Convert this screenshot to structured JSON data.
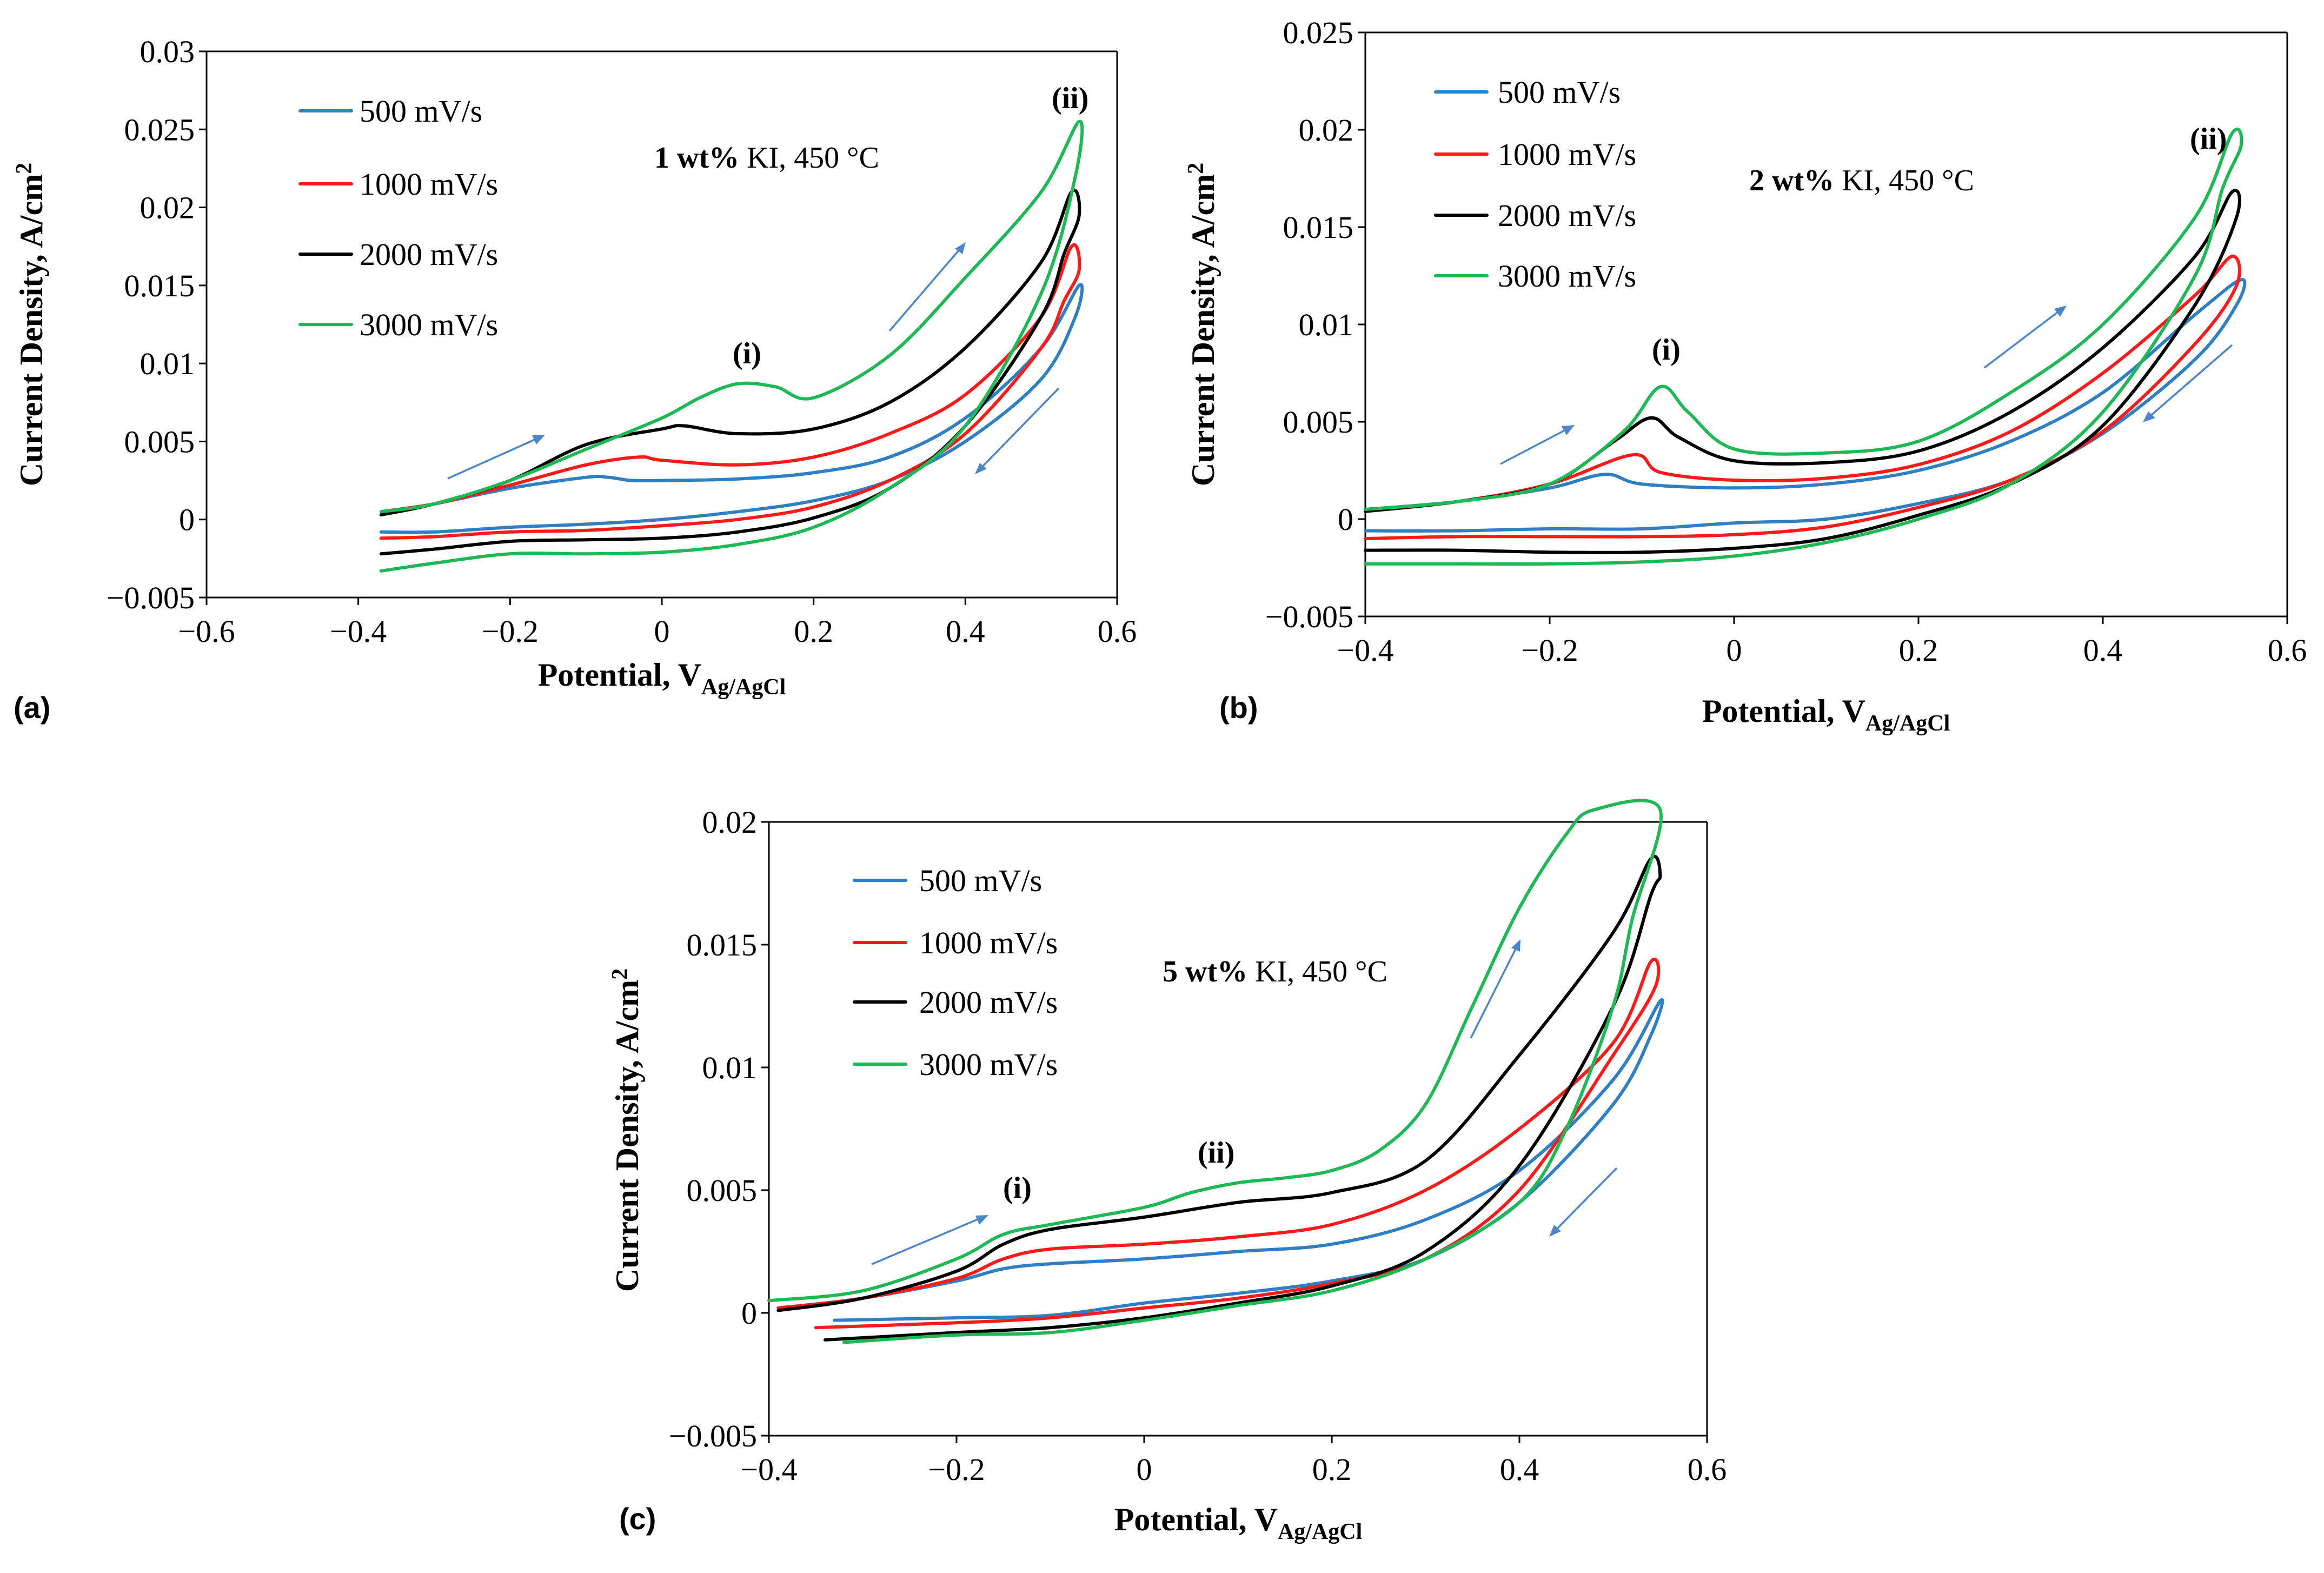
{
  "colors": {
    "s500": "#2f7fc4",
    "s1000": "#ff1a1a",
    "s2000": "#000000",
    "s3000": "#1db954",
    "arrow": "#4a86c8"
  },
  "chart_data": [
    {
      "id": "a",
      "type": "line",
      "panel_label": "(a)",
      "title_bold": "1 wt%",
      "title_rest": " KI, 450 °C",
      "xlabel_main": "Potential, V",
      "xlabel_sub": "Ag/AgCl",
      "ylabel": "Current Density, A/cm",
      "ylabel_sup": "2",
      "xlim": [
        -0.6,
        0.6
      ],
      "ylim": [
        -0.005,
        0.03
      ],
      "xticks": [
        -0.6,
        -0.4,
        -0.2,
        0,
        0.2,
        0.4,
        0.6
      ],
      "xtick_labels": [
        "−0.6",
        "−0.4",
        "−0.2",
        "0",
        "0.2",
        "0.4",
        "0.6"
      ],
      "yticks": [
        -0.005,
        0,
        0.005,
        0.01,
        0.015,
        0.02,
        0.025,
        0.03
      ],
      "ytick_labels": [
        "−0.005",
        "0",
        "0.005",
        "0.01",
        "0.015",
        "0.02",
        "0.025",
        "0.03"
      ],
      "annotations": [
        "(i)",
        "(ii)"
      ],
      "series": [
        {
          "name": "500 mV/s",
          "color_key": "s500",
          "x": [
            -0.37,
            -0.3,
            -0.2,
            -0.1,
            -0.07,
            -0.04,
            0,
            0.1,
            0.2,
            0.3,
            0.4,
            0.5,
            0.55,
            0.545,
            0.5,
            0.4,
            0.3,
            0.2,
            0.1,
            0,
            -0.1,
            -0.2,
            -0.3,
            -0.37
          ],
          "y": [
            0.0005,
            0.001,
            0.002,
            0.0027,
            0.0027,
            0.0025,
            0.0025,
            0.0026,
            0.003,
            0.004,
            0.0065,
            0.011,
            0.015,
            0.013,
            0.009,
            0.005,
            0.0025,
            0.0012,
            0.0005,
            0,
            -0.0003,
            -0.0005,
            -0.0008,
            -0.0008
          ]
        },
        {
          "name": "1000 mV/s",
          "color_key": "s1000",
          "x": [
            -0.37,
            -0.3,
            -0.2,
            -0.1,
            -0.03,
            0,
            0.1,
            0.2,
            0.3,
            0.4,
            0.5,
            0.54,
            0.55,
            0.53,
            0.5,
            0.4,
            0.3,
            0.2,
            0.1,
            0,
            -0.1,
            -0.2,
            -0.3,
            -0.37
          ],
          "y": [
            0.0005,
            0.001,
            0.0022,
            0.0035,
            0.004,
            0.0038,
            0.0035,
            0.004,
            0.0055,
            0.008,
            0.013,
            0.0175,
            0.016,
            0.014,
            0.011,
            0.0055,
            0.0025,
            0.0008,
            0,
            -0.0004,
            -0.0007,
            -0.0008,
            -0.0011,
            -0.0012
          ]
        },
        {
          "name": "2000 mV/s",
          "color_key": "s2000",
          "x": [
            -0.37,
            -0.3,
            -0.2,
            -0.1,
            0,
            0.03,
            0.1,
            0.2,
            0.3,
            0.4,
            0.5,
            0.54,
            0.55,
            0.53,
            0.5,
            0.4,
            0.3,
            0.2,
            0.1,
            0,
            -0.1,
            -0.2,
            -0.3,
            -0.37
          ],
          "y": [
            0.0003,
            0.001,
            0.0025,
            0.0048,
            0.0058,
            0.006,
            0.0055,
            0.0058,
            0.0075,
            0.011,
            0.0165,
            0.021,
            0.0195,
            0.017,
            0.013,
            0.006,
            0.002,
            0.0001,
            -0.0008,
            -0.0012,
            -0.0013,
            -0.0014,
            -0.0019,
            -0.0022
          ]
        },
        {
          "name": "3000 mV/s",
          "color_key": "s3000",
          "x": [
            -0.37,
            -0.3,
            -0.2,
            -0.1,
            0,
            0.05,
            0.1,
            0.15,
            0.2,
            0.3,
            0.4,
            0.5,
            0.55,
            0.545,
            0.5,
            0.4,
            0.3,
            0.2,
            0.1,
            0,
            -0.1,
            -0.2,
            -0.3,
            -0.37
          ],
          "y": [
            0.0005,
            0.001,
            0.0025,
            0.0045,
            0.0065,
            0.0078,
            0.0087,
            0.0085,
            0.0078,
            0.0105,
            0.0155,
            0.021,
            0.0255,
            0.022,
            0.0145,
            0.006,
            0.002,
            -0.0005,
            -0.0016,
            -0.0021,
            -0.0022,
            -0.0022,
            -0.0028,
            -0.0033
          ]
        }
      ]
    },
    {
      "id": "b",
      "type": "line",
      "panel_label": "(b)",
      "title_bold": "2 wt%",
      "title_rest": " KI, 450 °C",
      "xlabel_main": "Potential, V",
      "xlabel_sub": "Ag/AgCl",
      "ylabel": "Current Density, A/cm",
      "ylabel_sup": "2",
      "xlim": [
        -0.4,
        0.6
      ],
      "ylim": [
        -0.005,
        0.025
      ],
      "xticks": [
        -0.4,
        -0.2,
        0,
        0.2,
        0.4,
        0.6
      ],
      "xtick_labels": [
        "−0.4",
        "−0.2",
        "0",
        "0.2",
        "0.4",
        "0.6"
      ],
      "yticks": [
        -0.005,
        0,
        0.005,
        0.01,
        0.015,
        0.02,
        0.025
      ],
      "ytick_labels": [
        "−0.005",
        "0",
        "0.005",
        "0.01",
        "0.015",
        "0.02",
        "0.025"
      ],
      "annotations": [
        "(i)",
        "(ii)"
      ],
      "series": [
        {
          "name": "500 mV/s",
          "color_key": "s500",
          "x": [
            -0.4,
            -0.3,
            -0.2,
            -0.14,
            -0.1,
            0,
            0.1,
            0.2,
            0.3,
            0.4,
            0.5,
            0.55,
            0.545,
            0.5,
            0.4,
            0.3,
            0.2,
            0.1,
            0,
            -0.1,
            -0.2,
            -0.3,
            -0.4
          ],
          "y": [
            0.0005,
            0.0009,
            0.0016,
            0.0023,
            0.0018,
            0.0016,
            0.0018,
            0.0025,
            0.004,
            0.0065,
            0.0105,
            0.0123,
            0.011,
            0.0082,
            0.0044,
            0.002,
            0.0008,
            0,
            -0.0002,
            -0.0005,
            -0.0005,
            -0.0006,
            -0.0006
          ]
        },
        {
          "name": "1000 mV/s",
          "color_key": "s1000",
          "x": [
            -0.4,
            -0.3,
            -0.2,
            -0.11,
            -0.08,
            0,
            0.1,
            0.2,
            0.3,
            0.4,
            0.5,
            0.54,
            0.545,
            0.5,
            0.4,
            0.3,
            0.2,
            0.1,
            0,
            -0.1,
            -0.2,
            -0.3,
            -0.4
          ],
          "y": [
            0.0004,
            0.0009,
            0.0018,
            0.0033,
            0.0024,
            0.002,
            0.0021,
            0.0028,
            0.0045,
            0.0075,
            0.0115,
            0.0135,
            0.012,
            0.009,
            0.0045,
            0.002,
            0.0006,
            -0.0004,
            -0.0008,
            -0.0009,
            -0.0009,
            -0.0009,
            -0.001
          ]
        },
        {
          "name": "2000 mV/s",
          "color_key": "s2000",
          "x": [
            -0.4,
            -0.3,
            -0.2,
            -0.13,
            -0.09,
            -0.06,
            0,
            0.1,
            0.2,
            0.3,
            0.4,
            0.5,
            0.54,
            0.545,
            0.5,
            0.4,
            0.3,
            0.2,
            0.1,
            0,
            -0.1,
            -0.2,
            -0.3,
            -0.4
          ],
          "y": [
            0.0004,
            0.0009,
            0.0018,
            0.004,
            0.0052,
            0.0042,
            0.003,
            0.0029,
            0.0035,
            0.0055,
            0.0088,
            0.0135,
            0.0168,
            0.0155,
            0.011,
            0.0048,
            0.0018,
            0.0002,
            -0.001,
            -0.0015,
            -0.0017,
            -0.0017,
            -0.0016,
            -0.0016
          ]
        },
        {
          "name": "3000 mV/s",
          "color_key": "s3000",
          "x": [
            -0.4,
            -0.3,
            -0.2,
            -0.12,
            -0.08,
            -0.05,
            0,
            0.1,
            0.2,
            0.3,
            0.4,
            0.5,
            0.54,
            0.55,
            0.53,
            0.5,
            0.4,
            0.3,
            0.2,
            0.1,
            0,
            -0.1,
            -0.2,
            -0.3,
            -0.4
          ],
          "y": [
            0.0005,
            0.0009,
            0.0018,
            0.0045,
            0.0068,
            0.0055,
            0.0036,
            0.0034,
            0.004,
            0.0065,
            0.01,
            0.0155,
            0.0198,
            0.0192,
            0.017,
            0.0125,
            0.0055,
            0.0018,
            0,
            -0.0012,
            -0.0019,
            -0.0022,
            -0.0023,
            -0.0023,
            -0.0023
          ]
        }
      ]
    },
    {
      "id": "c",
      "type": "line",
      "panel_label": "(c)",
      "title_bold": "5 wt%",
      "title_rest": " KI, 450 °C",
      "xlabel_main": "Potential, V",
      "xlabel_sub": "Ag/AgCl",
      "ylabel": "Current Density, A/cm",
      "ylabel_sup": "2",
      "xlim": [
        -0.4,
        0.6
      ],
      "ylim": [
        -0.005,
        0.02
      ],
      "xticks": [
        -0.4,
        -0.2,
        0,
        0.2,
        0.4,
        0.6
      ],
      "xtick_labels": [
        "−0.4",
        "−0.2",
        "0",
        "0.2",
        "0.4",
        "0.6"
      ],
      "yticks": [
        -0.005,
        0,
        0.005,
        0.01,
        0.015,
        0.02
      ],
      "ytick_labels": [
        "−0.005",
        "0",
        "0.005",
        "0.01",
        "0.015",
        "0.02"
      ],
      "annotations": [
        "(i)",
        "(ii)"
      ],
      "series": [
        {
          "name": "500 mV/s",
          "color_key": "s500",
          "x": [
            -0.39,
            -0.3,
            -0.2,
            -0.15,
            -0.1,
            0,
            0.1,
            0.2,
            0.3,
            0.4,
            0.5,
            0.55,
            0.54,
            0.5,
            0.4,
            0.3,
            0.2,
            0.1,
            0,
            -0.1,
            -0.2,
            -0.33
          ],
          "y": [
            0.0002,
            0.0006,
            0.0013,
            0.0018,
            0.002,
            0.0022,
            0.0025,
            0.0028,
            0.0038,
            0.0058,
            0.0095,
            0.0127,
            0.0113,
            0.0085,
            0.0045,
            0.0022,
            0.0013,
            0.0008,
            0.0004,
            -0.0001,
            -0.0002,
            -0.0003
          ]
        },
        {
          "name": "1000 mV/s",
          "color_key": "s1000",
          "x": [
            -0.39,
            -0.3,
            -0.2,
            -0.15,
            -0.1,
            0,
            0.1,
            0.2,
            0.3,
            0.4,
            0.5,
            0.54,
            0.545,
            0.5,
            0.4,
            0.3,
            0.2,
            0.1,
            0,
            -0.1,
            -0.2,
            -0.35
          ],
          "y": [
            0.0002,
            0.0006,
            0.0014,
            0.0022,
            0.0026,
            0.0028,
            0.0031,
            0.0036,
            0.005,
            0.0075,
            0.011,
            0.0143,
            0.0133,
            0.0105,
            0.005,
            0.0022,
            0.0012,
            0.0006,
            0.0002,
            -0.0002,
            -0.0004,
            -0.0006
          ]
        },
        {
          "name": "2000 mV/s",
          "color_key": "s2000",
          "x": [
            -0.39,
            -0.3,
            -0.2,
            -0.15,
            -0.1,
            0,
            0.1,
            0.2,
            0.3,
            0.4,
            0.5,
            0.54,
            0.55,
            0.54,
            0.5,
            0.4,
            0.3,
            0.2,
            0.1,
            0,
            -0.1,
            -0.2,
            -0.34
          ],
          "y": [
            0.0001,
            0.0006,
            0.0017,
            0.0028,
            0.0034,
            0.0039,
            0.0045,
            0.0049,
            0.0062,
            0.0105,
            0.0155,
            0.0185,
            0.0178,
            0.017,
            0.0125,
            0.006,
            0.0025,
            0.0011,
            0.0004,
            -0.0002,
            -0.0006,
            -0.0008,
            -0.0011
          ]
        },
        {
          "name": "3000 mV/s",
          "color_key": "s3000",
          "x": [
            -0.4,
            -0.3,
            -0.2,
            -0.15,
            -0.1,
            0,
            0.05,
            0.1,
            0.15,
            0.2,
            0.25,
            0.3,
            0.35,
            0.4,
            0.45,
            0.48,
            0.55,
            0.52,
            0.5,
            0.45,
            0.4,
            0.3,
            0.2,
            0.1,
            0,
            -0.1,
            -0.2,
            -0.32
          ],
          "y": [
            0.0005,
            0.0009,
            0.0022,
            0.0032,
            0.0036,
            0.0043,
            0.0049,
            0.0053,
            0.0055,
            0.0058,
            0.0066,
            0.0085,
            0.0125,
            0.0165,
            0.0195,
            0.0205,
            0.0205,
            0.016,
            0.0125,
            0.0075,
            0.0045,
            0.0022,
            0.0009,
            0.0003,
            -0.0003,
            -0.0008,
            -0.0009,
            -0.0012
          ]
        }
      ]
    }
  ]
}
